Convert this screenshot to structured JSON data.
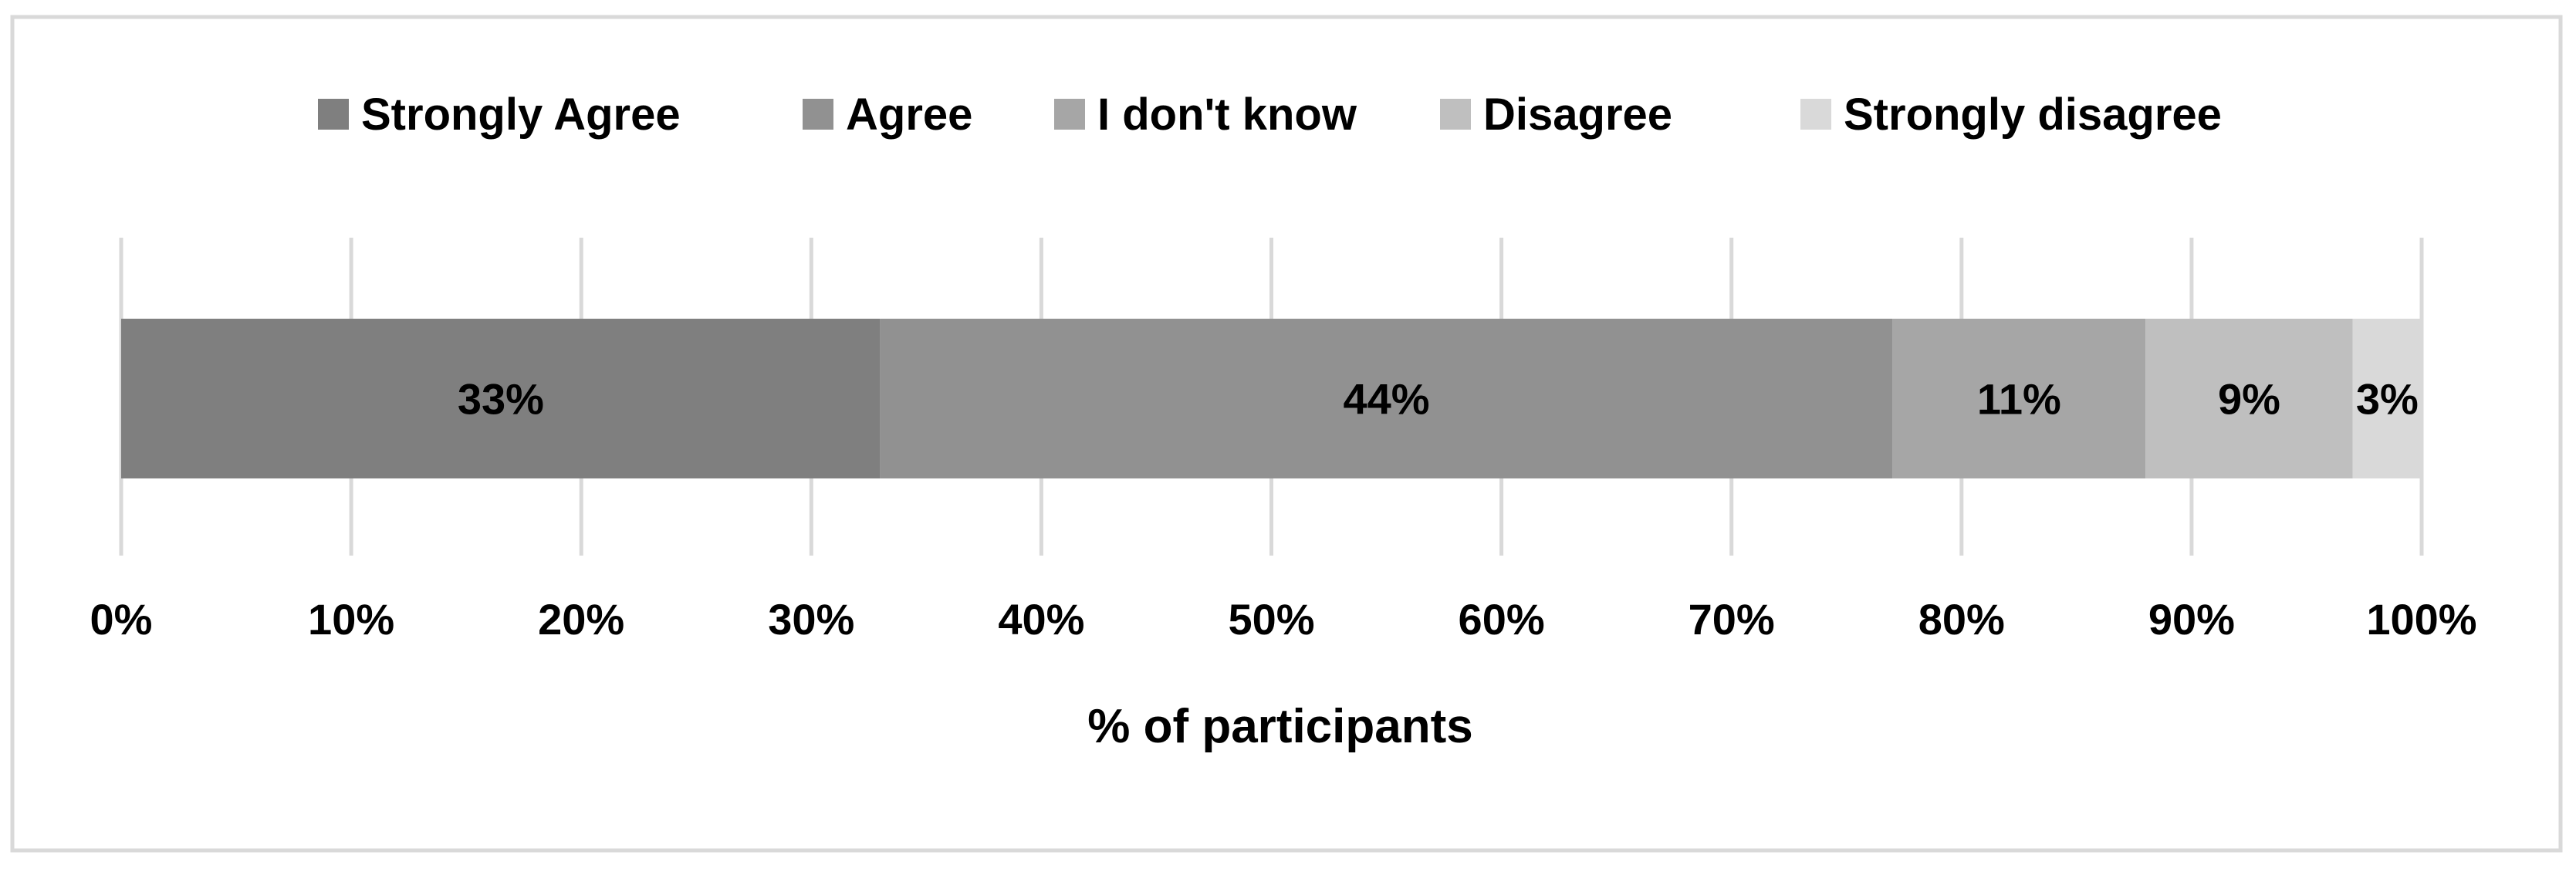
{
  "chart_data": {
    "type": "bar",
    "orientation": "horizontal",
    "stacked": true,
    "categories": [
      ""
    ],
    "series": [
      {
        "name": "Strongly Agree",
        "values": [
          33
        ],
        "label": "33%",
        "color": "#7f7f7f"
      },
      {
        "name": "Agree",
        "values": [
          44
        ],
        "label": "44%",
        "color": "#919191"
      },
      {
        "name": "I don't know",
        "values": [
          11
        ],
        "label": "11%",
        "color": "#a6a6a6"
      },
      {
        "name": "Disagree",
        "values": [
          9
        ],
        "label": "9%",
        "color": "#bfbfbf"
      },
      {
        "name": "Strongly disagree",
        "values": [
          3
        ],
        "label": "3%",
        "color": "#d9d9d9"
      }
    ],
    "xlabel": "% of participants",
    "ylabel": "",
    "xlim": [
      0,
      100
    ],
    "xticks": [
      "0%",
      "10%",
      "20%",
      "30%",
      "40%",
      "50%",
      "60%",
      "70%",
      "80%",
      "90%",
      "100%"
    ],
    "grid": "vertical",
    "legend_position": "top"
  },
  "colors": {
    "border": "#d9d9d9",
    "gridline": "#d9d9d9",
    "text": "#000000"
  }
}
